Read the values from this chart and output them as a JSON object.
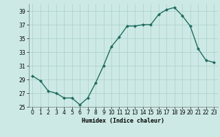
{
  "x": [
    0,
    1,
    2,
    3,
    4,
    5,
    6,
    7,
    8,
    9,
    10,
    11,
    12,
    13,
    14,
    15,
    16,
    17,
    18,
    19,
    20,
    21,
    22,
    23
  ],
  "y": [
    29.5,
    28.8,
    27.3,
    27.0,
    26.3,
    26.3,
    25.3,
    26.3,
    28.5,
    31.0,
    33.8,
    35.2,
    36.8,
    36.8,
    37.0,
    37.0,
    38.5,
    39.2,
    39.5,
    38.3,
    36.8,
    33.5,
    31.8,
    31.5
  ],
  "line_color": "#1e6b5e",
  "marker": "D",
  "markersize": 2.0,
  "linewidth": 1.0,
  "bg_color": "#cce9e5",
  "grid_color": "#aacfca",
  "xlabel": "Humidex (Indice chaleur)",
  "ylim": [
    25,
    40
  ],
  "xlim": [
    -0.5,
    23.5
  ],
  "yticks": [
    25,
    27,
    29,
    31,
    33,
    35,
    37,
    39
  ],
  "xticks": [
    0,
    1,
    2,
    3,
    4,
    5,
    6,
    7,
    8,
    9,
    10,
    11,
    12,
    13,
    14,
    15,
    16,
    17,
    18,
    19,
    20,
    21,
    22,
    23
  ],
  "label_fontsize": 6.0,
  "tick_fontsize": 5.5
}
